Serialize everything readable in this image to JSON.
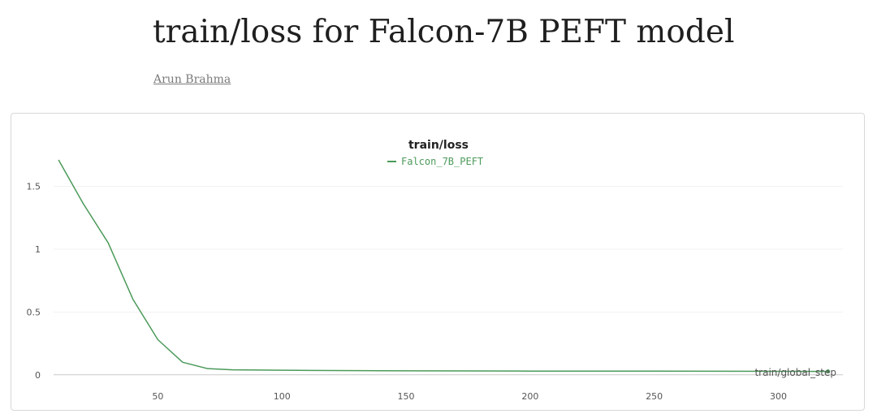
{
  "report": {
    "title": "train/loss for Falcon-7B PEFT model",
    "author": "Arun Brahma"
  },
  "colors": {
    "series": "#4b9a5a",
    "grid": "#f1f1f1",
    "axis": "#c9c9c9"
  },
  "chart_data": {
    "type": "line",
    "title": "train/loss",
    "xlabel": "train/global_step",
    "ylabel": "",
    "xlim": [
      8,
      326
    ],
    "ylim": [
      -0.04,
      1.82
    ],
    "x_ticks": [
      50,
      100,
      150,
      200,
      250,
      300
    ],
    "y_ticks": [
      0,
      0.5,
      1,
      1.5
    ],
    "x_tick_labels": [
      "50",
      "100",
      "150",
      "200",
      "250",
      "300"
    ],
    "y_tick_labels": [
      "0",
      "0.5",
      "1",
      "1.5"
    ],
    "grid": true,
    "legend_position": "top-center",
    "series": [
      {
        "name": "Falcon_7B_PEFT",
        "color": "#4b9a5a",
        "x": [
          10,
          20,
          30,
          40,
          50,
          60,
          70,
          80,
          100,
          120,
          150,
          200,
          250,
          300,
          320
        ],
        "y": [
          1.71,
          1.36,
          1.05,
          0.6,
          0.28,
          0.1,
          0.05,
          0.04,
          0.037,
          0.034,
          0.032,
          0.03,
          0.029,
          0.028,
          0.027
        ]
      }
    ]
  }
}
